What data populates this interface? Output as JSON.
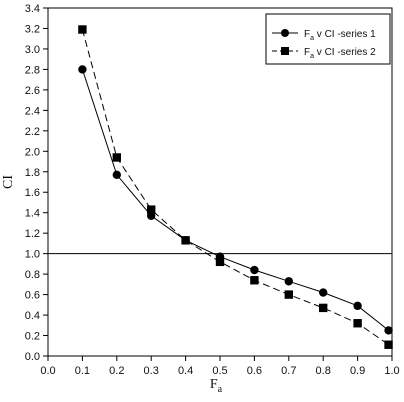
{
  "chart_data": {
    "type": "line",
    "xlabel": "F",
    "xlabel_sub": "a",
    "ylabel": "CI",
    "xlim": [
      0.0,
      1.0
    ],
    "ylim": [
      0.0,
      3.4
    ],
    "x_ticks": [
      "0.0",
      "0.1",
      "0.2",
      "0.3",
      "0.4",
      "0.5",
      "0.6",
      "0.7",
      "0.8",
      "0.9",
      "1.0"
    ],
    "y_ticks": [
      "0.0",
      "0.2",
      "0.4",
      "0.6",
      "0.8",
      "1.0",
      "1.2",
      "1.4",
      "1.6",
      "1.8",
      "2.0",
      "2.2",
      "2.4",
      "2.6",
      "2.8",
      "3.0",
      "3.2",
      "3.4"
    ],
    "reference_line": 1.0,
    "grid": false,
    "legend_position": "top-right",
    "series": [
      {
        "name_prefix": "F",
        "name_sub": "a",
        "name_suffix": " v CI -series 1",
        "marker": "circle",
        "line_style": "solid",
        "x": [
          0.1,
          0.2,
          0.3,
          0.4,
          0.5,
          0.6,
          0.7,
          0.8,
          0.9,
          0.99
        ],
        "y": [
          2.8,
          1.77,
          1.37,
          1.13,
          0.97,
          0.84,
          0.73,
          0.62,
          0.49,
          0.25
        ]
      },
      {
        "name_prefix": "F",
        "name_sub": "a",
        "name_suffix": " v CI -series 2",
        "marker": "square",
        "line_style": "dashed",
        "x": [
          0.1,
          0.2,
          0.3,
          0.4,
          0.5,
          0.6,
          0.7,
          0.8,
          0.9,
          0.99
        ],
        "y": [
          3.19,
          1.94,
          1.43,
          1.13,
          0.92,
          0.74,
          0.6,
          0.47,
          0.32,
          0.11
        ]
      }
    ]
  }
}
